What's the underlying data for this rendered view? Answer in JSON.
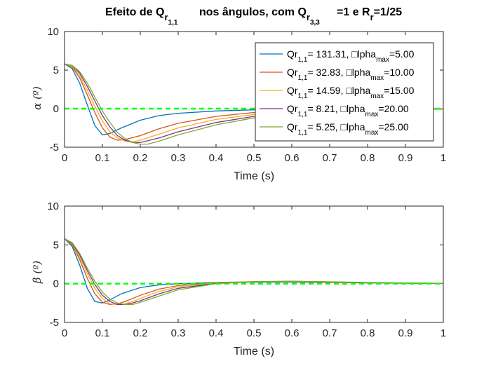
{
  "title": {
    "p1": "Efeito de Q",
    "s1": "r",
    "ss1": "1,1",
    "p2": "nos ângulos, com Q",
    "s2": "r",
    "ss2": "3,3",
    "p3": "=1 e R",
    "s3": "r",
    "p4": "=1/25"
  },
  "chart_data": [
    {
      "type": "line",
      "xlabel": "Time (s)",
      "ylabel": "α (º)",
      "xlim": [
        0,
        1
      ],
      "ylim": [
        -5,
        10
      ],
      "x_ticks": [
        "0",
        "0.1",
        "0.2",
        "0.3",
        "0.4",
        "0.5",
        "0.6",
        "0.7",
        "0.8",
        "0.9",
        "1"
      ],
      "y_ticks": [
        "10",
        "5",
        "0",
        "-5"
      ],
      "legend_position": "top-right",
      "reference_line": {
        "y": 0,
        "style": "dashed",
        "color": "#00ff00"
      },
      "series": [
        {
          "name": "131.31, □lpha=5.00",
          "color": "#0072bd",
          "x": [
            0,
            0.02,
            0.04,
            0.06,
            0.08,
            0.1,
            0.12,
            0.15,
            0.2,
            0.25,
            0.3,
            0.4,
            0.5,
            0.6,
            0.7,
            0.8,
            0.9,
            1.0
          ],
          "y": [
            5.8,
            5.2,
            3.3,
            0.5,
            -2.2,
            -3.4,
            -3.2,
            -2.5,
            -1.5,
            -0.9,
            -0.6,
            -0.3,
            -0.15,
            -0.08,
            -0.04,
            -0.02,
            -0.01,
            0
          ]
        },
        {
          "name": "32.83, □lpha=10.00",
          "color": "#d95319",
          "x": [
            0,
            0.02,
            0.04,
            0.06,
            0.08,
            0.1,
            0.12,
            0.14,
            0.16,
            0.2,
            0.25,
            0.3,
            0.4,
            0.5,
            0.6,
            0.7,
            0.8,
            0.9,
            1.0
          ],
          "y": [
            5.8,
            5.4,
            4.0,
            1.8,
            -0.5,
            -2.5,
            -3.7,
            -4.1,
            -4.0,
            -3.5,
            -2.6,
            -1.9,
            -1.0,
            -0.5,
            -0.28,
            -0.15,
            -0.08,
            -0.04,
            -0.02
          ]
        },
        {
          "name": "14.59, □lpha=15.00",
          "color": "#edb120",
          "x": [
            0,
            0.02,
            0.04,
            0.06,
            0.08,
            0.1,
            0.12,
            0.14,
            0.16,
            0.18,
            0.2,
            0.25,
            0.3,
            0.4,
            0.5,
            0.6,
            0.7,
            0.8,
            0.9,
            1.0
          ],
          "y": [
            5.8,
            5.5,
            4.3,
            2.4,
            0.3,
            -1.6,
            -3.0,
            -3.8,
            -4.2,
            -4.3,
            -4.1,
            -3.3,
            -2.5,
            -1.4,
            -0.75,
            -0.4,
            -0.22,
            -0.12,
            -0.06,
            -0.03
          ]
        },
        {
          "name": "8.21, □lpha=20.00",
          "color": "#7e2f8e",
          "x": [
            0,
            0.02,
            0.04,
            0.06,
            0.08,
            0.1,
            0.12,
            0.14,
            0.16,
            0.18,
            0.2,
            0.25,
            0.3,
            0.4,
            0.5,
            0.6,
            0.7,
            0.8,
            0.9,
            1.0
          ],
          "y": [
            5.8,
            5.6,
            4.6,
            2.9,
            1.0,
            -0.9,
            -2.4,
            -3.5,
            -4.1,
            -4.4,
            -4.4,
            -3.8,
            -3.0,
            -1.8,
            -1.0,
            -0.55,
            -0.3,
            -0.17,
            -0.09,
            -0.05
          ]
        },
        {
          "name": "5.25, □lpha=25.00",
          "color": "#77ac30",
          "x": [
            0,
            0.02,
            0.04,
            0.06,
            0.08,
            0.1,
            0.12,
            0.14,
            0.16,
            0.18,
            0.2,
            0.22,
            0.25,
            0.3,
            0.4,
            0.5,
            0.6,
            0.7,
            0.8,
            0.9,
            1.0
          ],
          "y": [
            5.8,
            5.6,
            4.8,
            3.3,
            1.5,
            -0.3,
            -1.8,
            -3.1,
            -3.9,
            -4.4,
            -4.6,
            -4.6,
            -4.2,
            -3.4,
            -2.1,
            -1.2,
            -0.68,
            -0.38,
            -0.21,
            -0.11,
            -0.06
          ]
        }
      ]
    },
    {
      "type": "line",
      "xlabel": "Time (s)",
      "ylabel": "β (º)",
      "xlim": [
        0,
        1
      ],
      "ylim": [
        -5,
        10
      ],
      "x_ticks": [
        "0",
        "0.1",
        "0.2",
        "0.3",
        "0.4",
        "0.5",
        "0.6",
        "0.7",
        "0.8",
        "0.9",
        "1"
      ],
      "y_ticks": [
        "10",
        "5",
        "0",
        "-5"
      ],
      "reference_line": {
        "y": 0,
        "style": "dashed",
        "color": "#00ff00"
      },
      "series": [
        {
          "color": "#0072bd",
          "x": [
            0,
            0.02,
            0.04,
            0.06,
            0.08,
            0.1,
            0.12,
            0.15,
            0.2,
            0.25,
            0.3,
            0.4,
            0.5,
            0.6,
            0.7,
            0.8,
            0.9,
            1.0
          ],
          "y": [
            5.8,
            4.8,
            2.4,
            -0.6,
            -2.3,
            -2.5,
            -2.1,
            -1.3,
            -0.5,
            -0.15,
            0.0,
            0.15,
            0.2,
            0.2,
            0.15,
            0.1,
            0.05,
            0.02
          ]
        },
        {
          "color": "#d95319",
          "x": [
            0,
            0.02,
            0.04,
            0.06,
            0.08,
            0.1,
            0.12,
            0.14,
            0.16,
            0.2,
            0.25,
            0.3,
            0.4,
            0.5,
            0.6,
            0.7,
            0.8,
            0.9,
            1.0
          ],
          "y": [
            5.8,
            5.0,
            3.1,
            0.7,
            -1.3,
            -2.4,
            -2.7,
            -2.6,
            -2.3,
            -1.5,
            -0.7,
            -0.25,
            0.15,
            0.25,
            0.25,
            0.18,
            0.12,
            0.06,
            0.03
          ]
        },
        {
          "color": "#edb120",
          "x": [
            0,
            0.02,
            0.04,
            0.06,
            0.08,
            0.1,
            0.12,
            0.14,
            0.16,
            0.18,
            0.2,
            0.25,
            0.3,
            0.4,
            0.5,
            0.6,
            0.7,
            0.8,
            0.9,
            1.0
          ],
          "y": [
            5.8,
            5.1,
            3.4,
            1.3,
            -0.6,
            -1.9,
            -2.6,
            -2.7,
            -2.6,
            -2.3,
            -1.9,
            -1.0,
            -0.4,
            0.1,
            0.25,
            0.28,
            0.2,
            0.13,
            0.07,
            0.03
          ]
        },
        {
          "color": "#7e2f8e",
          "x": [
            0,
            0.02,
            0.04,
            0.06,
            0.08,
            0.1,
            0.12,
            0.14,
            0.16,
            0.18,
            0.2,
            0.25,
            0.3,
            0.4,
            0.5,
            0.6,
            0.7,
            0.8,
            0.9,
            1.0
          ],
          "y": [
            5.8,
            5.2,
            3.7,
            1.7,
            -0.1,
            -1.5,
            -2.3,
            -2.7,
            -2.7,
            -2.5,
            -2.2,
            -1.3,
            -0.6,
            0.05,
            0.25,
            0.3,
            0.22,
            0.14,
            0.08,
            0.04
          ]
        },
        {
          "color": "#77ac30",
          "x": [
            0,
            0.02,
            0.04,
            0.06,
            0.08,
            0.1,
            0.12,
            0.14,
            0.16,
            0.18,
            0.2,
            0.25,
            0.3,
            0.4,
            0.5,
            0.6,
            0.7,
            0.8,
            0.9,
            1.0
          ],
          "y": [
            5.8,
            5.3,
            3.9,
            2.0,
            0.3,
            -1.1,
            -2.0,
            -2.5,
            -2.7,
            -2.7,
            -2.4,
            -1.6,
            -0.8,
            0.0,
            0.25,
            0.3,
            0.24,
            0.16,
            0.09,
            0.04
          ]
        }
      ]
    }
  ],
  "legend": [
    {
      "label": "Qr",
      "sub": "1,1",
      "mid": "= 131.31, □lpha",
      "sub2": "max",
      "end": "=5.00",
      "color": "#0072bd"
    },
    {
      "label": "Qr",
      "sub": "1,1",
      "mid": "= 32.83, □lpha",
      "sub2": "max",
      "end": "=10.00",
      "color": "#d95319"
    },
    {
      "label": "Qr",
      "sub": "1,1",
      "mid": "= 14.59, □lpha",
      "sub2": "max",
      "end": "=15.00",
      "color": "#edb120"
    },
    {
      "label": "Qr",
      "sub": "1,1",
      "mid": "= 8.21, □lpha",
      "sub2": "max",
      "end": "=20.00",
      "color": "#7e2f8e"
    },
    {
      "label": "Qr",
      "sub": "1,1",
      "mid": "= 5.25, □lpha",
      "sub2": "max",
      "end": "=25.00",
      "color": "#77ac30"
    }
  ]
}
